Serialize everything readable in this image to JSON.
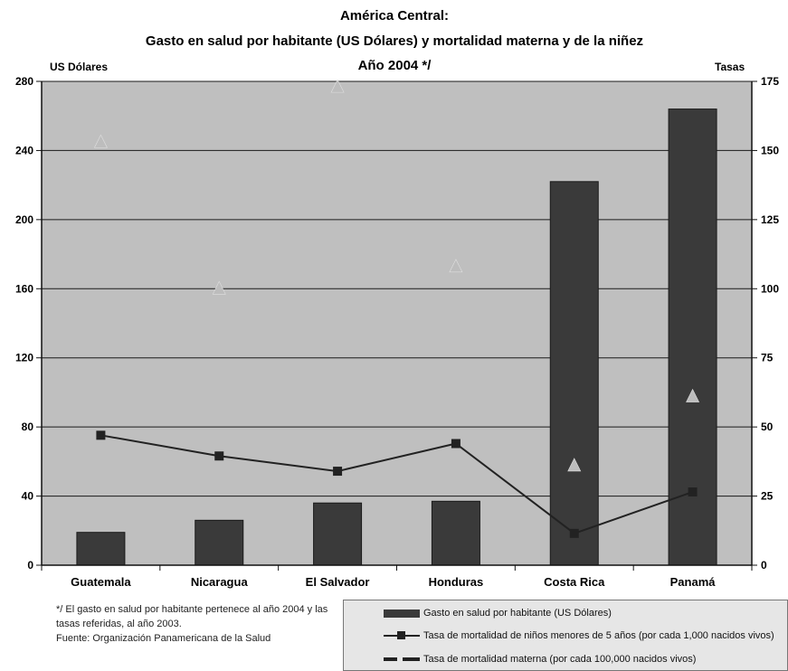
{
  "chart_data": {
    "type": "bar",
    "title_lines": [
      "América Central:",
      "Gasto en salud por habitante (US Dólares) y mortalidad materna y de la niñez",
      "Año 2004 */"
    ],
    "ylabel": "US Dólares",
    "y2label": "Tasas",
    "categories": [
      "Guatemala",
      "Nicaragua",
      "El Salvador",
      "Honduras",
      "Costa Rica",
      "Panamá"
    ],
    "ylim": [
      0,
      280
    ],
    "yticks": [
      0,
      40,
      80,
      120,
      160,
      200,
      240,
      280
    ],
    "y2lim": [
      0,
      175
    ],
    "y2ticks": [
      0,
      25,
      50,
      75,
      100,
      125,
      150,
      175
    ],
    "grid": true,
    "series": [
      {
        "name": "Gasto en salud por habitante (US Dólares)",
        "type": "bar",
        "axis": "left",
        "values": [
          19,
          26,
          36,
          37,
          222,
          264
        ],
        "color": "#3a3a3a"
      },
      {
        "name": "Tasa de mortalidad de niños menores de 5 años (por cada 1,000 nacidos vivos)",
        "type": "line",
        "axis": "right",
        "values": [
          47,
          39.5,
          34,
          44,
          11.5,
          26.5
        ],
        "color": "#222222"
      },
      {
        "name": "Tasa de mortalidad materna (por cada 100,000 nacidos vivos)",
        "type": "scatter",
        "marker": "triangle",
        "axis": "right",
        "values": [
          153,
          100,
          173,
          108,
          36,
          61
        ],
        "color": "#bdbdbd"
      }
    ],
    "legend": "bottom-right",
    "plot_background": "#bfbfbf"
  },
  "footnote": {
    "line1": "*/ El gasto en salud por habitante pertenece al año 2004 y las tasas referidas, al año 2003.",
    "line2": "Fuente: Organización Panamericana de la Salud"
  }
}
